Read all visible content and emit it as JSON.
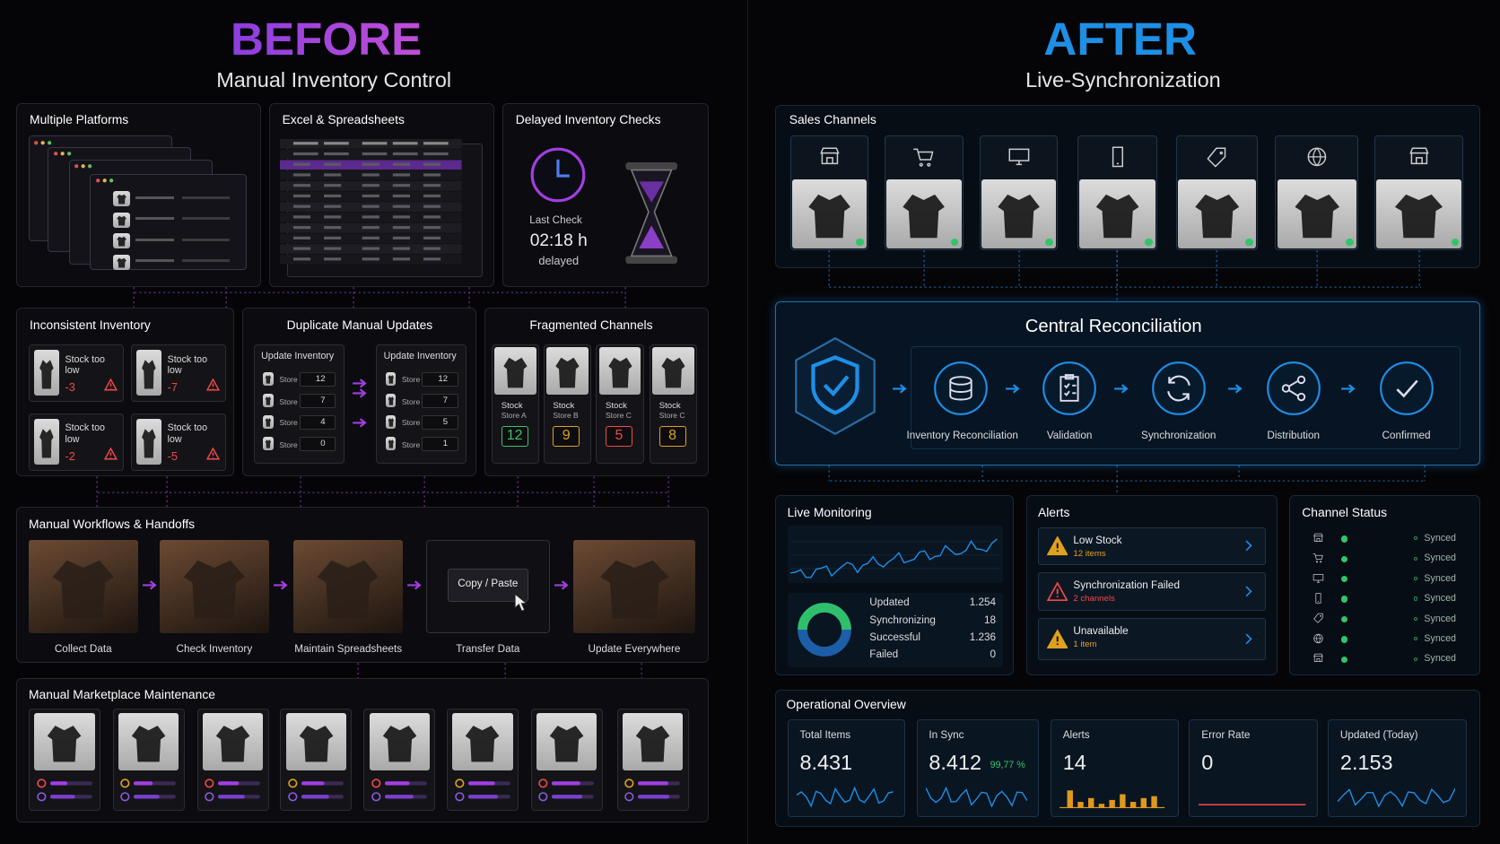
{
  "before": {
    "title": "BEFORE",
    "subtitle": "Manual Inventory Control",
    "multiple_platforms": {
      "title": "Multiple Platforms"
    },
    "spreadsheets": {
      "title": "Excel & Spreadsheets"
    },
    "delayed_checks": {
      "title": "Delayed Inventory Checks",
      "label": "Last Check",
      "time": "02:18 h",
      "status": "delayed"
    },
    "inconsistent": {
      "title": "Inconsistent Inventory",
      "items": [
        {
          "label": "Stock too low",
          "value": "-3"
        },
        {
          "label": "Stock too low",
          "value": "-7"
        },
        {
          "label": "Stock too low",
          "value": "-2"
        },
        {
          "label": "Stock too low",
          "value": "-5"
        }
      ]
    },
    "duplicate": {
      "title": "Duplicate Manual Updates",
      "columns": [
        {
          "header": "Update Inventory",
          "rows": [
            {
              "label": "Store",
              "value": "12"
            },
            {
              "label": "Store",
              "value": "7"
            },
            {
              "label": "Store",
              "value": "4"
            },
            {
              "label": "Store",
              "value": "0"
            }
          ]
        },
        {
          "header": "Update Inventory",
          "rows": [
            {
              "label": "Store",
              "value": "12"
            },
            {
              "label": "Store",
              "value": "7"
            },
            {
              "label": "Store",
              "value": "5"
            },
            {
              "label": "Store",
              "value": "1"
            }
          ]
        }
      ]
    },
    "fragmented": {
      "title": "Fragmented Channels",
      "items": [
        {
          "label": "Stock",
          "store": "Store A",
          "value": "12"
        },
        {
          "label": "Stock",
          "store": "Store B",
          "value": "9"
        },
        {
          "label": "Stock",
          "store": "Store C",
          "value": "5"
        },
        {
          "label": "Stock",
          "store": "Store C",
          "value": "8"
        }
      ]
    },
    "workflows": {
      "title": "Manual Workflows & Handoffs",
      "overlay": "Copy / Paste",
      "steps": [
        "Collect Data",
        "Check Inventory",
        "Maintain Spreadsheets",
        "Transfer Data",
        "Update Everywhere"
      ]
    },
    "marketplace": {
      "title": "Manual Marketplace Maintenance"
    }
  },
  "after": {
    "title": "AFTER",
    "subtitle": "Live-Synchronization",
    "sales_channels": {
      "title": "Sales Channels"
    },
    "central": {
      "title": "Central Reconciliation",
      "steps": [
        "Inventory Reconciliation",
        "Validation",
        "Synchronization",
        "Distribution",
        "Confirmed"
      ]
    },
    "live_monitoring": {
      "title": "Live Monitoring",
      "stats": [
        {
          "label": "Updated",
          "value": "1.254"
        },
        {
          "label": "Synchronizing",
          "value": "18"
        },
        {
          "label": "Successful",
          "value": "1.236"
        },
        {
          "label": "Failed",
          "value": "0"
        }
      ]
    },
    "alerts": {
      "title": "Alerts",
      "items": [
        {
          "title": "Low Stock",
          "detail": "12 items"
        },
        {
          "title": "Synchronization Failed",
          "detail": "2 channels"
        },
        {
          "title": "Unavailable",
          "detail": "1 item"
        }
      ]
    },
    "channel_status": {
      "title": "Channel Status",
      "items": [
        "Synced",
        "Synced",
        "Synced",
        "Synced",
        "Synced",
        "Synced",
        "Synced"
      ]
    },
    "operational": {
      "title": "Operational Overview",
      "cards": [
        {
          "label": "Total Items",
          "value": "8.431"
        },
        {
          "label": "In Sync",
          "value": "8.412",
          "extra": "99,77 %"
        },
        {
          "label": "Alerts",
          "value": "14"
        },
        {
          "label": "Error Rate",
          "value": "0"
        },
        {
          "label": "Updated (Today)",
          "value": "2.153"
        }
      ]
    }
  }
}
